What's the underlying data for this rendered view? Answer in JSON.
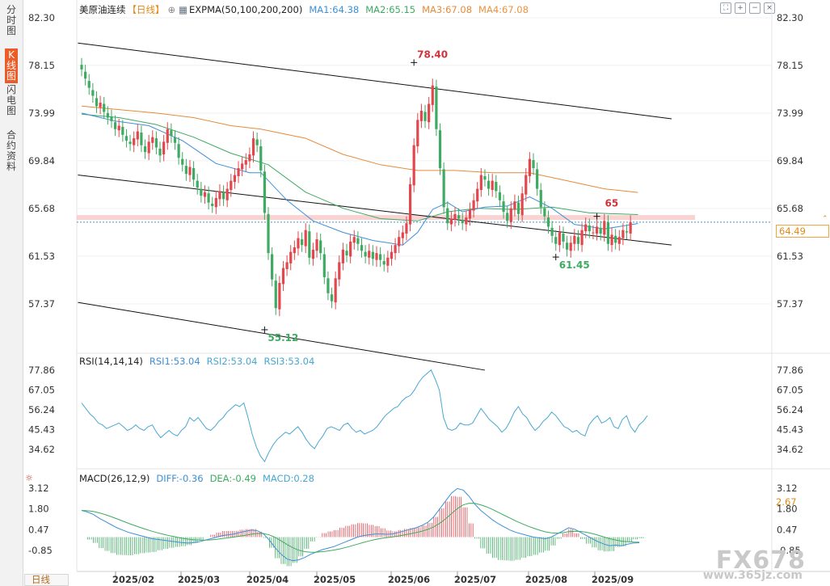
{
  "sidebar": {
    "tabs": [
      {
        "label": "分时图",
        "active": false
      },
      {
        "label": "K线图",
        "active": true
      },
      {
        "label": "闪电图",
        "active": false
      },
      {
        "label": "合约资料",
        "active": false
      }
    ]
  },
  "bottom_tab": "日线",
  "watermark": {
    "brand": "FX678",
    "site": "www.365jz.com"
  },
  "legend": {
    "title": "美原油连续",
    "period": "【日线】",
    "expma": "EXPMA(50,100,200,200)",
    "ma1": "MA1:64.38",
    "ma2": "MA2:65.15",
    "ma3": "MA3:67.08",
    "ma4": "MA4:67.08"
  },
  "rsi_legend": {
    "name": "RSI(14,14,14)",
    "rsi1": "RSI1:53.04",
    "rsi2": "RSI2:53.04",
    "rsi3": "RSI3:53.04"
  },
  "macd_legend": {
    "name": "MACD(26,12,9)",
    "diff": "DIFF:-0.36",
    "dea": "DEA:-0.49",
    "macd": "MACD:0.28"
  },
  "current_price": "64.49",
  "macd_tag": "2.67",
  "colors": {
    "up": "#e2474e",
    "down": "#3eaa62",
    "ma1": "#3d8fd6",
    "ma2": "#3eaa62",
    "ma3": "#e58b3b",
    "legend_title": "#222222",
    "accent": "#ec5b28"
  },
  "chart_data": {
    "type": "candlestick",
    "price_axis_ticks": [
      "82.30",
      "78.15",
      "73.99",
      "69.84",
      "65.68",
      "61.53",
      "57.37"
    ],
    "price_range": [
      52.0,
      84.0
    ],
    "x_labels": [
      "2025/02",
      "2025/03",
      "2025/04",
      "2025/05",
      "2025/06",
      "2025/07",
      "2025/08",
      "2025/09"
    ],
    "annotations": [
      {
        "text": "78.40",
        "price": 78.4,
        "type": "high"
      },
      {
        "text": "55.12",
        "price": 55.12,
        "type": "low"
      },
      {
        "text": "65",
        "price": 65.0,
        "type": "high"
      },
      {
        "text": "61.45",
        "price": 61.45,
        "type": "low"
      }
    ],
    "candles_close": [
      77.8,
      77.0,
      76.2,
      75.5,
      74.6,
      74.9,
      74.1,
      73.6,
      73.3,
      72.6,
      72.9,
      72.1,
      71.6,
      71.3,
      71.8,
      72.4,
      71.2,
      70.6,
      71.5,
      71.9,
      71.0,
      70.3,
      71.5,
      72.6,
      72.0,
      71.4,
      70.1,
      69.5,
      68.7,
      69.3,
      68.2,
      67.5,
      66.8,
      67.1,
      66.2,
      65.9,
      66.6,
      67.2,
      66.5,
      67.4,
      68.1,
      68.6,
      69.2,
      69.6,
      69.9,
      70.4,
      71.8,
      71.2,
      69.0,
      65.3,
      61.8,
      59.5,
      57.0,
      59.2,
      60.5,
      61.0,
      61.9,
      62.3,
      63.1,
      62.5,
      63.8,
      61.4,
      62.1,
      63.0,
      61.8,
      59.7,
      58.3,
      57.6,
      59.6,
      61.0,
      62.1,
      61.6,
      62.8,
      63.2,
      62.6,
      62.0,
      61.5,
      62.0,
      61.3,
      61.8,
      61.2,
      60.8,
      61.4,
      61.9,
      62.5,
      63.2,
      63.6,
      64.4,
      67.8,
      71.2,
      73.4,
      74.2,
      73.3,
      74.8,
      76.4,
      72.6,
      69.2,
      65.8,
      64.4,
      64.8,
      65.2,
      64.8,
      64.4,
      64.9,
      65.6,
      66.4,
      67.4,
      68.6,
      68.2,
      67.4,
      68.1,
      67.2,
      66.4,
      65.4,
      64.6,
      65.7,
      66.3,
      65.2,
      67.0,
      68.6,
      70.0,
      69.2,
      67.4,
      65.8,
      65.0,
      64.1,
      63.3,
      62.6,
      63.6,
      62.8,
      62.1,
      62.7,
      63.3,
      62.6,
      63.8,
      64.3,
      63.7,
      63.6,
      64.1,
      63.5,
      64.6,
      62.6,
      63.4,
      62.7,
      63.2,
      63.8,
      63.6,
      64.49
    ],
    "candles_open": [
      78.2,
      77.6,
      76.8,
      76.0,
      75.3,
      74.5,
      74.8,
      74.0,
      73.7,
      73.2,
      72.5,
      72.8,
      72.0,
      71.5,
      71.2,
      71.7,
      72.3,
      71.1,
      70.5,
      71.4,
      71.8,
      70.9,
      70.4,
      71.4,
      72.5,
      71.9,
      71.3,
      70.0,
      69.4,
      68.6,
      69.2,
      68.1,
      67.4,
      66.7,
      67.0,
      66.1,
      65.8,
      66.5,
      67.1,
      66.4,
      67.3,
      68.0,
      68.5,
      69.1,
      69.5,
      69.8,
      70.3,
      71.7,
      71.1,
      68.9,
      65.2,
      61.7,
      59.4,
      56.9,
      59.1,
      60.4,
      60.9,
      61.8,
      62.2,
      63.0,
      62.4,
      63.7,
      61.3,
      62.0,
      62.9,
      61.7,
      59.6,
      58.2,
      57.5,
      59.5,
      60.9,
      62.0,
      61.5,
      62.7,
      63.1,
      62.5,
      61.9,
      61.4,
      61.9,
      61.2,
      61.7,
      61.1,
      60.7,
      61.3,
      61.8,
      62.4,
      63.1,
      63.5,
      64.3,
      67.7,
      71.1,
      73.3,
      74.1,
      73.2,
      74.7,
      76.3,
      72.5,
      69.1,
      65.7,
      64.3,
      64.7,
      65.1,
      64.7,
      64.3,
      64.8,
      65.5,
      66.3,
      67.3,
      68.5,
      68.1,
      67.3,
      68.0,
      67.1,
      66.3,
      65.3,
      64.5,
      65.6,
      66.2,
      65.1,
      66.9,
      68.5,
      69.9,
      69.1,
      67.3,
      65.7,
      64.9,
      64.0,
      63.2,
      62.5,
      63.5,
      62.7,
      62.0,
      62.6,
      63.2,
      62.5,
      63.7,
      64.2,
      63.6,
      63.5,
      64.0,
      63.4,
      64.5,
      62.5,
      63.3,
      62.6,
      63.1,
      63.7,
      63.5
    ],
    "ma1_line": [
      [
        0,
        74.0
      ],
      [
        9,
        73.3
      ],
      [
        18,
        72.9
      ],
      [
        27,
        71.6
      ],
      [
        36,
        69.6
      ],
      [
        45,
        68.8
      ],
      [
        48,
        68.8
      ],
      [
        55,
        66.4
      ],
      [
        62,
        64.6
      ],
      [
        70,
        63.6
      ],
      [
        78,
        62.9
      ],
      [
        86,
        62.5
      ],
      [
        90,
        63.6
      ],
      [
        94,
        65.6
      ],
      [
        98,
        66.2
      ],
      [
        102,
        65.4
      ],
      [
        108,
        65.8
      ],
      [
        114,
        65.9
      ],
      [
        120,
        66.7
      ],
      [
        126,
        65.7
      ],
      [
        132,
        64.3
      ],
      [
        140,
        63.9
      ],
      [
        149,
        64.38
      ]
    ],
    "ma2_line": [
      [
        0,
        73.9
      ],
      [
        10,
        73.6
      ],
      [
        20,
        73.0
      ],
      [
        30,
        71.9
      ],
      [
        40,
        70.5
      ],
      [
        50,
        69.5
      ],
      [
        60,
        67.1
      ],
      [
        70,
        65.7
      ],
      [
        80,
        64.8
      ],
      [
        90,
        64.6
      ],
      [
        98,
        65.4
      ],
      [
        106,
        65.7
      ],
      [
        116,
        65.6
      ],
      [
        126,
        65.8
      ],
      [
        136,
        65.3
      ],
      [
        149,
        65.15
      ]
    ],
    "ma3_line": [
      [
        0,
        74.6
      ],
      [
        10,
        74.3
      ],
      [
        20,
        74.0
      ],
      [
        30,
        73.6
      ],
      [
        40,
        72.9
      ],
      [
        48,
        72.6
      ],
      [
        60,
        71.8
      ],
      [
        70,
        70.4
      ],
      [
        80,
        69.5
      ],
      [
        90,
        69.0
      ],
      [
        100,
        69.0
      ],
      [
        110,
        68.8
      ],
      [
        120,
        68.8
      ],
      [
        130,
        68.1
      ],
      [
        140,
        67.4
      ],
      [
        149,
        67.08
      ]
    ],
    "trend_lines": [
      {
        "from": [
          -1,
          80.1
        ],
        "to": [
          158,
          73.5
        ]
      },
      {
        "from": [
          -1,
          68.6
        ],
        "to": [
          158,
          62.5
        ]
      },
      {
        "from": [
          -1,
          57.5
        ],
        "to": [
          108,
          51.6
        ]
      }
    ],
    "horizontal_band": {
      "price": 64.9
    },
    "rsi": {
      "ticks": [
        "77.86",
        "67.05",
        "56.24",
        "45.43",
        "34.62"
      ],
      "range": [
        26,
        82
      ],
      "values": [
        60,
        57,
        54,
        52,
        49,
        48,
        46,
        47,
        48,
        49,
        47,
        45,
        46,
        48,
        46,
        45,
        47,
        48,
        44,
        41,
        43,
        45,
        43,
        42,
        45,
        47,
        52,
        50,
        52,
        49,
        46,
        45,
        47,
        50,
        52,
        55,
        57,
        59,
        58,
        60,
        52,
        43,
        36,
        31,
        28,
        33,
        37,
        40,
        42,
        44,
        43,
        45,
        47,
        44,
        40,
        37,
        35,
        39,
        42,
        46,
        47,
        46,
        45,
        48,
        49,
        46,
        44,
        45,
        43,
        44,
        45,
        47,
        50,
        53,
        55,
        57,
        58,
        61,
        63,
        64,
        67,
        71,
        74,
        76,
        78,
        73,
        67,
        52,
        46,
        45,
        46,
        49,
        48,
        48,
        49,
        53,
        57,
        54,
        51,
        49,
        47,
        44,
        46,
        50,
        55,
        58,
        54,
        52,
        48,
        45,
        47,
        50,
        52,
        55,
        53,
        50,
        47,
        46,
        44,
        45,
        43,
        42,
        48,
        51,
        53,
        49,
        50,
        52,
        47,
        46,
        51,
        53,
        47,
        44,
        48,
        50,
        53.04
      ]
    },
    "macd": {
      "ticks": [
        "3.12",
        "1.80",
        "0.47",
        "-0.85"
      ],
      "range": [
        -1.8,
        3.6
      ],
      "diff": [
        1.7,
        1.6,
        1.45,
        1.2,
        1.0,
        0.8,
        0.6,
        0.45,
        0.3,
        0.2,
        0.1,
        0.0,
        -0.1,
        -0.15,
        -0.2,
        -0.25,
        -0.3,
        -0.35,
        -0.38,
        -0.36,
        -0.3,
        -0.2,
        -0.1,
        0.0,
        0.1,
        0.15,
        0.2,
        0.3,
        0.38,
        0.45,
        0.4,
        0.2,
        -0.2,
        -0.7,
        -1.1,
        -1.4,
        -1.5,
        -1.45,
        -1.3,
        -1.1,
        -0.95,
        -0.8,
        -0.7,
        -0.6,
        -0.45,
        -0.3,
        -0.15,
        0.0,
        0.1,
        0.15,
        0.2,
        0.2,
        0.18,
        0.2,
        0.3,
        0.4,
        0.5,
        0.6,
        0.75,
        0.95,
        1.3,
        1.8,
        2.3,
        2.8,
        3.1,
        3.0,
        2.6,
        2.1,
        1.7,
        1.4,
        1.1,
        0.85,
        0.65,
        0.45,
        0.3,
        0.2,
        0.1,
        0.0,
        -0.05,
        -0.1,
        0.0,
        0.2,
        0.4,
        0.6,
        0.5,
        0.3,
        0.1,
        -0.1,
        -0.3,
        -0.45,
        -0.55,
        -0.5,
        -0.55,
        -0.45,
        -0.38,
        -0.36
      ]
    }
  }
}
